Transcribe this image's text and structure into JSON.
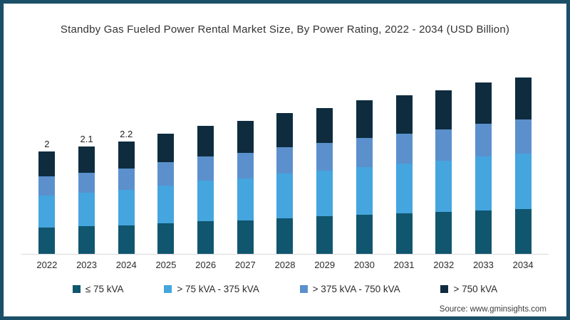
{
  "title": "Standby Gas Fueled Power Rental Market Size, By Power Rating, 2022 - 2034 (USD Billion)",
  "source": "Source: www.gminsights.com",
  "chart_data": {
    "type": "bar",
    "stacked": true,
    "title": "Standby Gas Fueled Power Rental Market Size, By Power Rating, 2022 - 2034 (USD Billion)",
    "unit": "USD Billion",
    "categories": [
      "2022",
      "2023",
      "2024",
      "2025",
      "2026",
      "2027",
      "2028",
      "2029",
      "2030",
      "2031",
      "2032",
      "2033",
      "2034"
    ],
    "series": [
      {
        "name": "≤ 75 kVA",
        "color": "#11566f",
        "values": [
          0.51,
          0.54,
          0.56,
          0.6,
          0.64,
          0.66,
          0.7,
          0.73,
          0.76,
          0.79,
          0.82,
          0.85,
          0.88
        ]
      },
      {
        "name": "> 75 kVA - 375 kVA",
        "color": "#45a5de",
        "values": [
          0.63,
          0.66,
          0.69,
          0.74,
          0.79,
          0.82,
          0.87,
          0.9,
          0.94,
          0.97,
          1.0,
          1.05,
          1.08
        ]
      },
      {
        "name": "> 375 kVA - 750 kVA",
        "color": "#5b90cd",
        "values": [
          0.37,
          0.39,
          0.42,
          0.45,
          0.47,
          0.49,
          0.52,
          0.54,
          0.57,
          0.59,
          0.61,
          0.64,
          0.66
        ]
      },
      {
        "name": "> 750 kVA",
        "color": "#0e2c3e",
        "values": [
          0.49,
          0.51,
          0.53,
          0.56,
          0.6,
          0.63,
          0.66,
          0.68,
          0.73,
          0.75,
          0.77,
          0.81,
          0.83
        ]
      }
    ],
    "totals": [
      2.0,
      2.1,
      2.2,
      2.35,
      2.5,
      2.6,
      2.75,
      2.85,
      3.0,
      3.1,
      3.2,
      3.35,
      3.45
    ],
    "data_labels": [
      "2",
      "2.1",
      "2.2",
      "",
      "",
      "",
      "",
      "",
      "",
      "",
      "",
      "",
      ""
    ],
    "ylim": [
      0,
      3.6
    ],
    "grid": false,
    "y_axis_visible": false,
    "legend_position": "bottom",
    "axis_line_color": "#d9d9d9"
  }
}
